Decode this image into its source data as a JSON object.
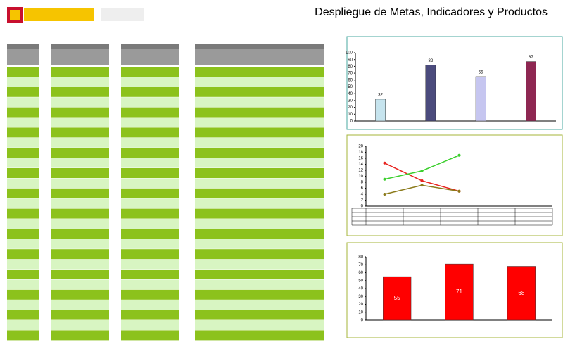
{
  "page_title": "Despliegue de Metas, Indicadores y Productos",
  "chart_data": [
    {
      "type": "bar",
      "categories": [
        null,
        null,
        null,
        null
      ],
      "values": [
        32,
        82,
        65,
        87
      ],
      "colors": [
        "#c6e4ee",
        "#4b4b7d",
        "#c6c6f0",
        "#8e2752"
      ],
      "ylim": [
        0,
        100
      ],
      "yticks": [
        0,
        10,
        20,
        30,
        40,
        50,
        60,
        70,
        80,
        90,
        100
      ],
      "grid": false
    },
    {
      "type": "line",
      "categories": [
        null,
        null,
        null,
        null,
        null
      ],
      "series": [
        {
          "color": "#e8231f",
          "values": [
            14.4,
            8.5,
            5,
            null,
            null
          ]
        },
        {
          "color": "#3ccf2e",
          "values": [
            9,
            11.8,
            17,
            null,
            null
          ]
        },
        {
          "color": "#8b7a1a",
          "values": [
            4,
            7,
            5,
            null,
            null
          ]
        }
      ],
      "ylim": [
        0,
        20
      ],
      "yticks": [
        0,
        2,
        4,
        6,
        8,
        10,
        12,
        14,
        16,
        18,
        20
      ],
      "grid": false
    },
    {
      "type": "bar",
      "categories": [
        null,
        null,
        null
      ],
      "values": [
        55,
        71,
        68
      ],
      "colors": [
        "#ff0000",
        "#ff0000",
        "#ff0000"
      ],
      "ylim": [
        0,
        80
      ],
      "yticks": [
        0,
        10,
        20,
        30,
        40,
        50,
        60,
        70,
        80
      ],
      "grid": false,
      "value_labels_inside": true
    }
  ]
}
